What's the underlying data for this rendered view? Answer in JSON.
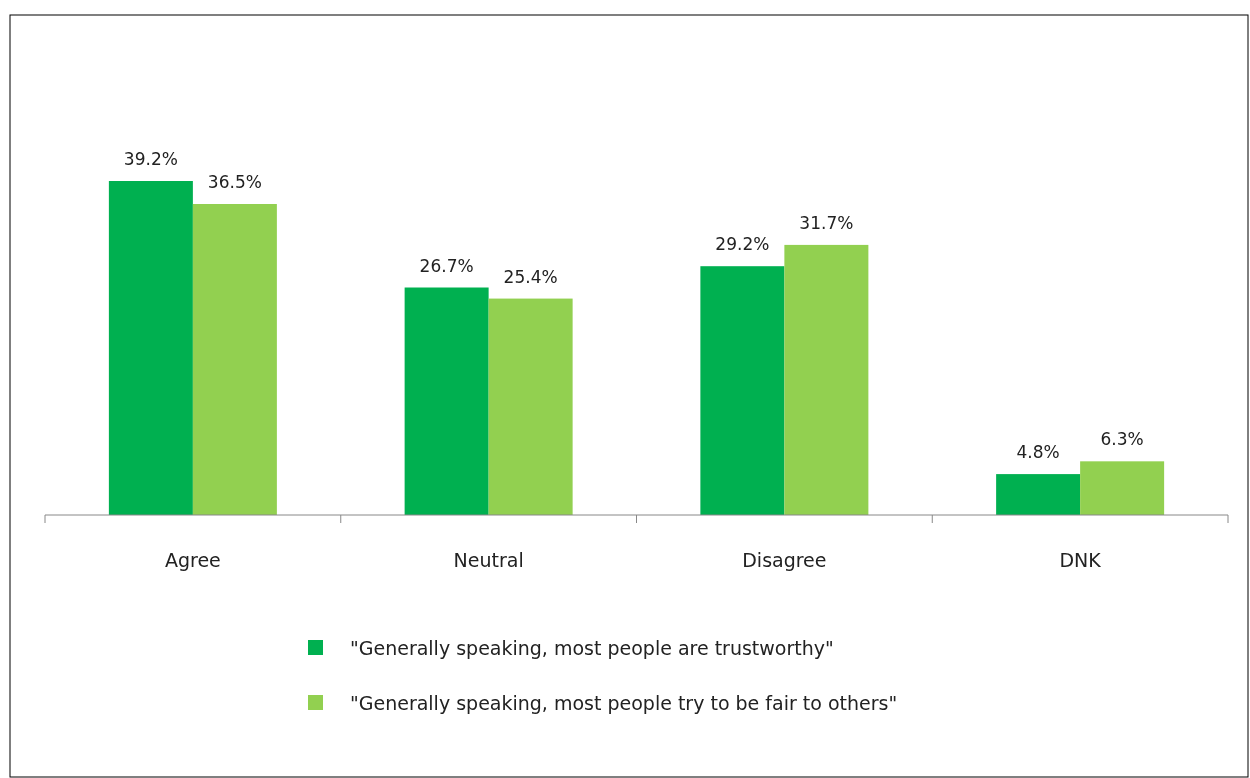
{
  "chart_data": {
    "type": "bar",
    "categories": [
      "Agree",
      "Neutral",
      "Disagree",
      "DNK"
    ],
    "series": [
      {
        "name": "\"Generally speaking, most people are trustworthy\"",
        "color": "#00b050",
        "values": [
          39.2,
          26.7,
          29.2,
          4.8
        ],
        "value_labels": [
          "39.2%",
          "26.7%",
          "29.2%",
          "4.8%"
        ]
      },
      {
        "name": "\"Generally speaking, most people try to be fair to others\"",
        "color": "#92d050",
        "values": [
          36.5,
          25.4,
          31.7,
          6.3
        ],
        "value_labels": [
          "36.5%",
          "25.4%",
          "31.7%",
          "6.3%"
        ]
      }
    ],
    "legend": "bottom"
  }
}
